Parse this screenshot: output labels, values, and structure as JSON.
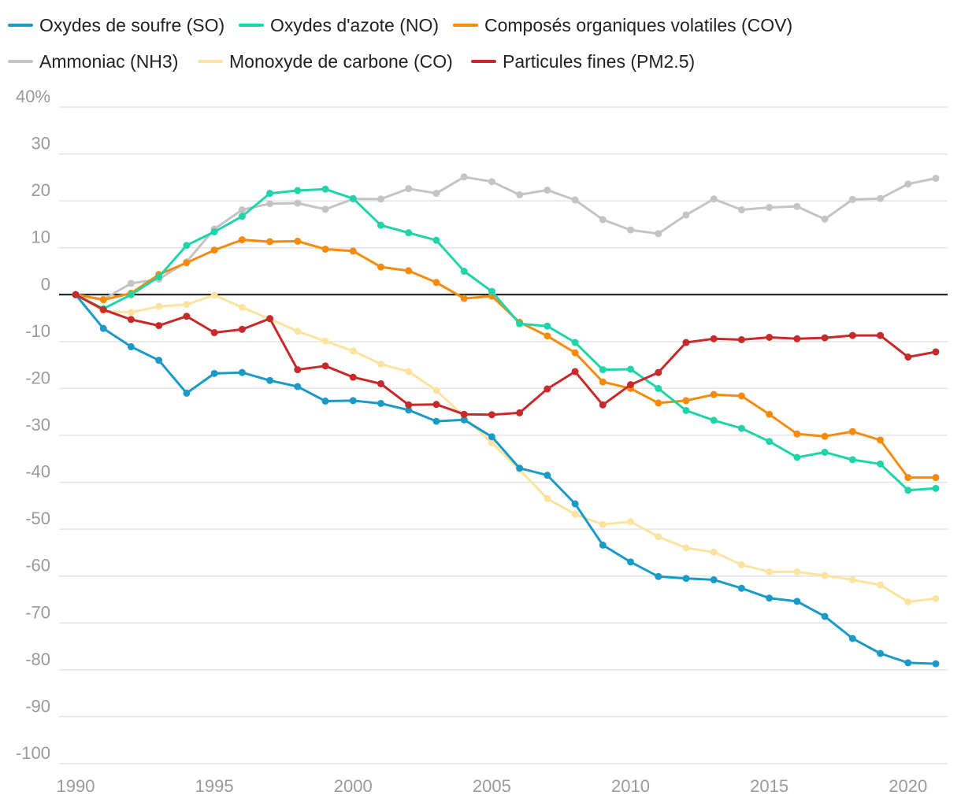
{
  "chart_data": {
    "type": "line",
    "title": "",
    "xlabel": "",
    "ylabel": "",
    "x": [
      1990,
      1991,
      1992,
      1993,
      1994,
      1995,
      1996,
      1997,
      1998,
      1999,
      2000,
      2001,
      2002,
      2003,
      2004,
      2005,
      2006,
      2007,
      2008,
      2009,
      2010,
      2011,
      2012,
      2013,
      2014,
      2015,
      2016,
      2017,
      2018,
      2019,
      2020,
      2021
    ],
    "xlim": [
      1990,
      2021
    ],
    "ylim": [
      -100,
      40
    ],
    "x_ticks": [
      1990,
      1995,
      2000,
      2005,
      2010,
      2015,
      2020
    ],
    "x_tick_labels": [
      "1990",
      "1995",
      "2000",
      "2005",
      "2010",
      "2015",
      "2020"
    ],
    "y_ticks": [
      40,
      30,
      20,
      10,
      0,
      -10,
      -20,
      -30,
      -40,
      -50,
      -60,
      -70,
      -80,
      -90,
      -100
    ],
    "y_tick_labels": [
      "40%",
      "30",
      "20",
      "10",
      "0",
      "-10",
      "-20",
      "-30",
      "-40",
      "-50",
      "-60",
      "-70",
      "-80",
      "-90",
      "-100"
    ],
    "grid": true,
    "zero_line": true,
    "legend_position": "top",
    "series": [
      {
        "name": "Oxydes de soufre (SO)",
        "color": "#1a9bc7",
        "values": [
          0,
          -7.2,
          -11.1,
          -14,
          -21,
          -16.8,
          -16.6,
          -18.3,
          -19.6,
          -22.7,
          -22.6,
          -23.2,
          -24.6,
          -27,
          -26.7,
          -30.3,
          -37,
          -38.5,
          -44.6,
          -53.4,
          -57,
          -60.1,
          -60.5,
          -60.8,
          -62.6,
          -64.7,
          -65.4,
          -68.6,
          -73.3,
          -76.5,
          -78.5,
          -78.7
        ]
      },
      {
        "name": "Oxydes d'azote (NO)",
        "color": "#1fd4a8",
        "values": [
          0,
          -3,
          0,
          3.8,
          10.5,
          13.4,
          16.7,
          21.6,
          22.2,
          22.5,
          20.5,
          14.8,
          13.2,
          11.6,
          5,
          0.7,
          -6.2,
          -6.7,
          -10.2,
          -16,
          -15.9,
          -20,
          -24.7,
          -26.8,
          -28.5,
          -31.3,
          -34.7,
          -33.6,
          -35.2,
          -36.1,
          -41.7,
          -41.3
        ]
      },
      {
        "name": "Composés organiques volatiles (COV)",
        "color": "#f58b0d",
        "values": [
          0,
          -1.1,
          0.3,
          4.3,
          6.8,
          9.5,
          11.7,
          11.3,
          11.4,
          9.7,
          9.3,
          5.9,
          5.1,
          2.6,
          -0.8,
          -0.3,
          -5.9,
          -8.8,
          -12.4,
          -18.6,
          -20,
          -23.1,
          -22.6,
          -21.3,
          -21.6,
          -25.5,
          -29.7,
          -30.2,
          -29.2,
          -31,
          -39,
          -39
        ]
      },
      {
        "name": "Ammoniac (NH3)",
        "color": "#c4c4c4",
        "values": [
          0,
          -1,
          2.4,
          3.3,
          7,
          14,
          18.1,
          19.4,
          19.5,
          18.2,
          20.4,
          20.4,
          22.6,
          21.6,
          25.1,
          24.1,
          21.3,
          22.3,
          20.2,
          16,
          13.8,
          13,
          17,
          20.4,
          18.1,
          18.6,
          18.8,
          16.1,
          20.3,
          20.5,
          23.6,
          24.8
        ]
      },
      {
        "name": "Monoxyde de carbone (CO)",
        "color": "#fce4a0",
        "values": [
          0,
          -3.5,
          -3.8,
          -2.5,
          -2.1,
          -0.1,
          -2.7,
          -5.2,
          -7.8,
          -9.9,
          -12,
          -14.8,
          -16.4,
          -20.4,
          -26,
          -31.6,
          -37.3,
          -43.5,
          -46.8,
          -49,
          -48.4,
          -51.6,
          -54,
          -54.9,
          -57.6,
          -59.1,
          -59.1,
          -59.9,
          -60.8,
          -61.9,
          -65.5,
          -64.8
        ]
      },
      {
        "name": "Particules fines (PM2.5)",
        "color": "#c72a2a",
        "values": [
          0,
          -3.2,
          -5.3,
          -6.6,
          -4.6,
          -8.1,
          -7.4,
          -5.1,
          -16,
          -15.2,
          -17.6,
          -19,
          -23.5,
          -23.4,
          -25.5,
          -25.6,
          -25.2,
          -20.1,
          -16.4,
          -23.5,
          -19.2,
          -16.6,
          -10.2,
          -9.4,
          -9.6,
          -9.1,
          -9.4,
          -9.2,
          -8.7,
          -8.7,
          -13.3,
          -12.2
        ]
      }
    ]
  }
}
